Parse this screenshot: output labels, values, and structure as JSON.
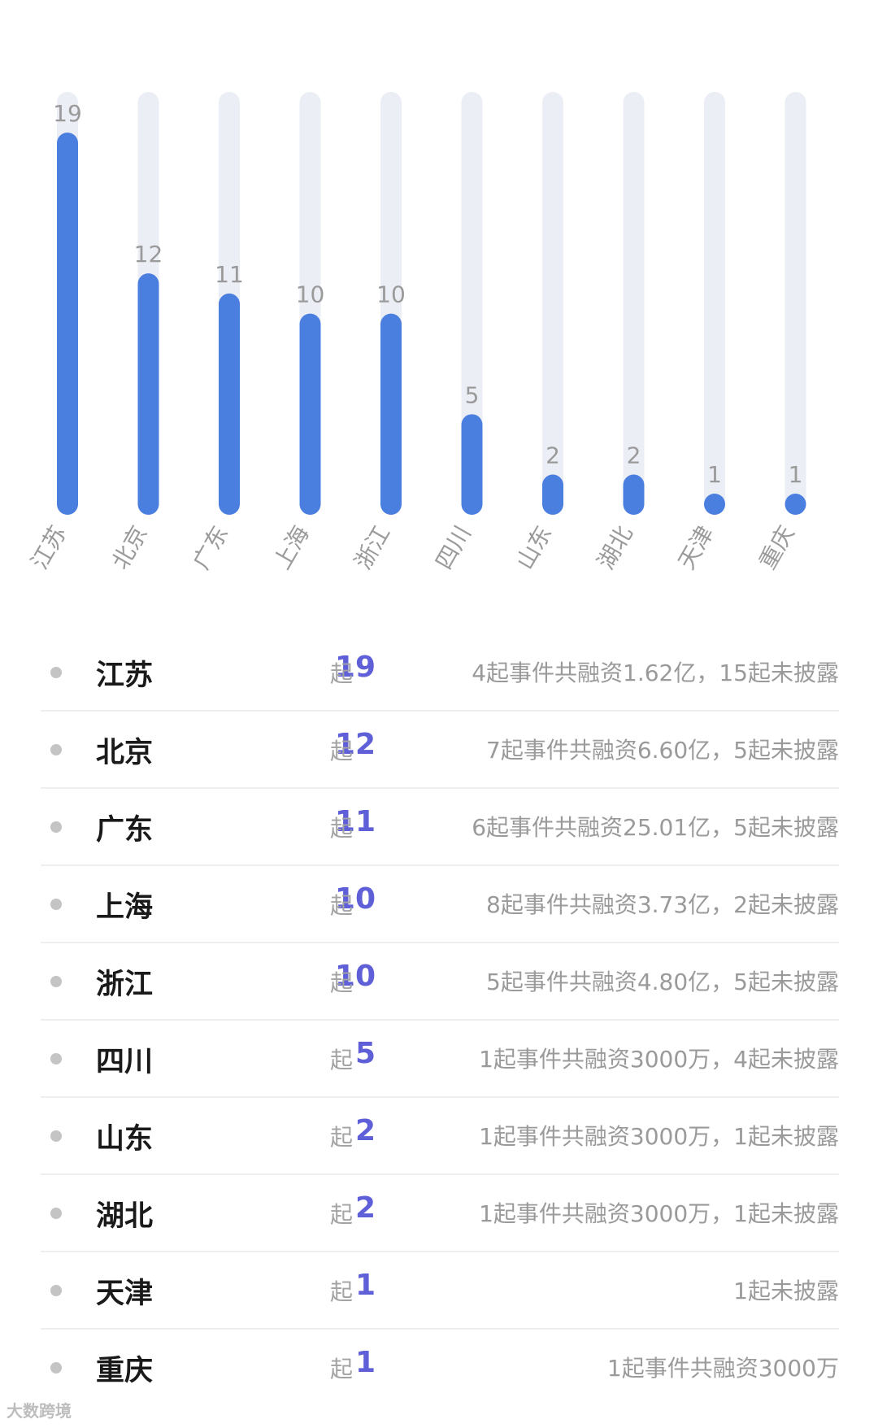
{
  "chart_data": {
    "type": "bar",
    "categories": [
      "江苏",
      "北京",
      "广东",
      "上海",
      "浙江",
      "四川",
      "山东",
      "湖北",
      "天津",
      "重庆"
    ],
    "values": [
      19,
      12,
      11,
      10,
      10,
      5,
      2,
      2,
      1,
      1
    ],
    "title": "",
    "xlabel": "",
    "ylabel": "",
    "ylim": [
      0,
      19
    ],
    "grid": false,
    "bar_color": "#4a7fe0",
    "track_color": "#eceef5"
  },
  "table": {
    "unit": "起",
    "rows": [
      {
        "province": "江苏",
        "count": "19",
        "desc": "4起事件共融资1.62亿，15起未披露"
      },
      {
        "province": "北京",
        "count": "12",
        "desc": "7起事件共融资6.60亿，5起未披露"
      },
      {
        "province": "广东",
        "count": "11",
        "desc": "6起事件共融资25.01亿，5起未披露"
      },
      {
        "province": "上海",
        "count": "10",
        "desc": "8起事件共融资3.73亿，2起未披露"
      },
      {
        "province": "浙江",
        "count": "10",
        "desc": "5起事件共融资4.80亿，5起未披露"
      },
      {
        "province": "四川",
        "count": "5",
        "desc": "1起事件共融资3000万，4起未披露"
      },
      {
        "province": "山东",
        "count": "2",
        "desc": "1起事件共融资3000万，1起未披露"
      },
      {
        "province": "湖北",
        "count": "2",
        "desc": "1起事件共融资3000万，1起未披露"
      },
      {
        "province": "天津",
        "count": "1",
        "desc": "1起未披露"
      },
      {
        "province": "重庆",
        "count": "1",
        "desc": "1起事件共融资3000万"
      }
    ],
    "accent_color": "#5f5fd8"
  },
  "watermark": "大数跨境"
}
